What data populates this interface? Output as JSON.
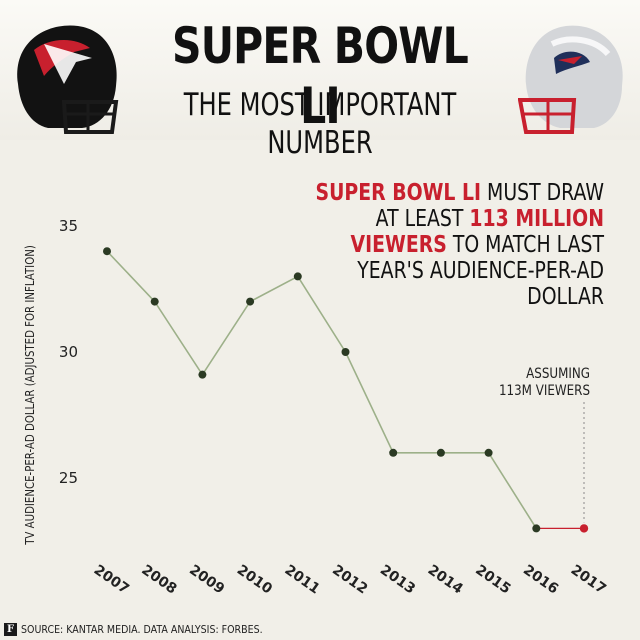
{
  "header": {
    "title": "SUPER BOWL LI",
    "subtitle": "THE MOST IMPORTANT NUMBER"
  },
  "headline": {
    "part1_red": "SUPER BOWL LI",
    "part2": " MUST DRAW AT LEAST ",
    "part3_red": "113 MILLION VIEWERS",
    "part4": " TO MATCH LAST YEAR'S AUDIENCE-PER-AD DOLLAR"
  },
  "annotation": {
    "line1": "ASSUMING",
    "line2": "113M VIEWERS"
  },
  "source": {
    "logo": "F",
    "text": "SOURCE: KANTAR MEDIA. DATA ANALYSIS: FORBES."
  },
  "icons": {
    "left_helmet": "falcons-helmet-icon",
    "right_helmet": "patriots-helmet-icon"
  },
  "colors": {
    "line": "#9db089",
    "point": "#2b3a23",
    "projected": "#c8202e",
    "accent_red": "#c8202e",
    "background": "#f1efe8"
  },
  "chart_data": {
    "type": "line",
    "title": "",
    "xlabel": "",
    "ylabel": "TV AUDIENCE-PER-AD DOLLAR (ADJUSTED FOR INFLATION)",
    "x": [
      "2007",
      "2008",
      "2009",
      "2010",
      "2011",
      "2012",
      "2013",
      "2014",
      "2015",
      "2016",
      "2017"
    ],
    "series": [
      {
        "values": [
          34,
          32,
          29.1,
          32,
          33,
          30,
          26,
          26,
          26,
          23,
          null
        ]
      }
    ],
    "projection": {
      "x": [
        "2016",
        "2017"
      ],
      "values": [
        23,
        23
      ]
    },
    "yticks": [
      25,
      30,
      35
    ],
    "ylim": [
      22,
      35.5
    ],
    "grid": false
  }
}
